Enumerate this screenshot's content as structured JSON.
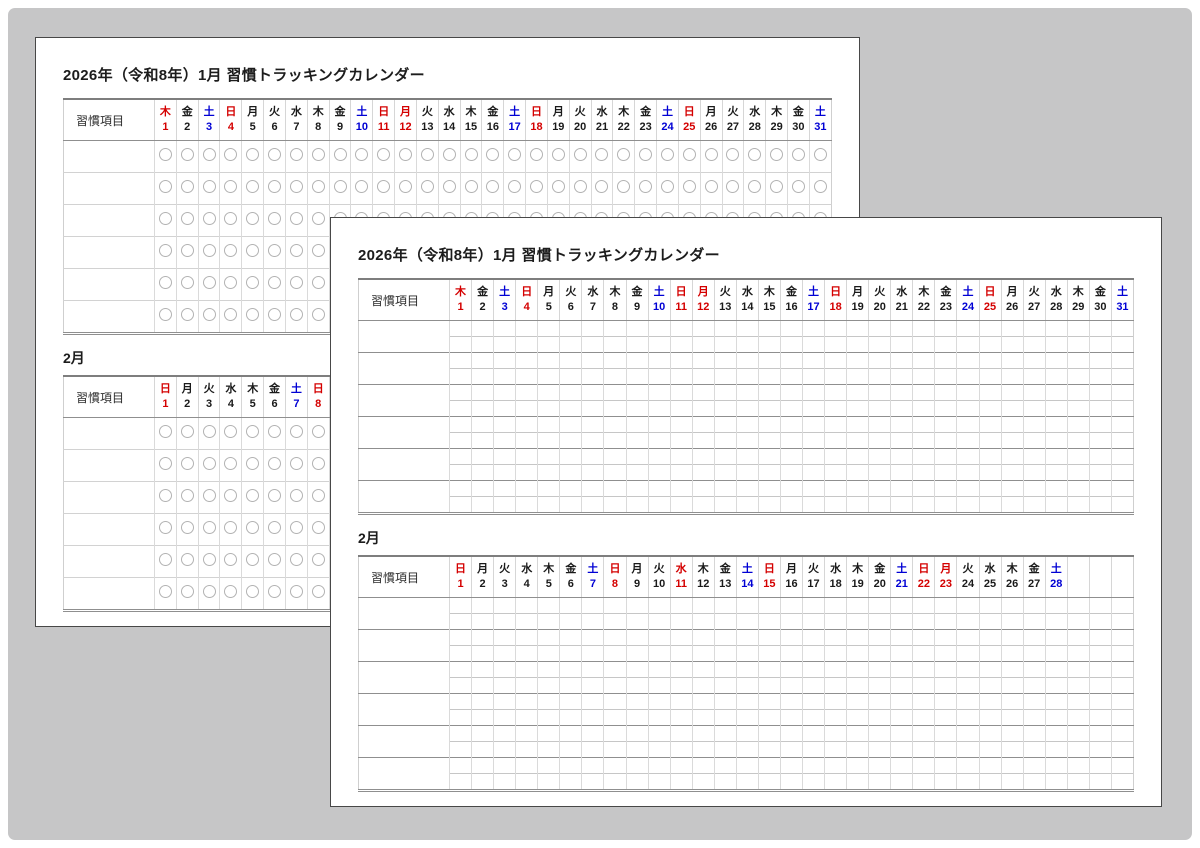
{
  "colors": {
    "sunday_holiday_red": "#d40000",
    "saturday_blue": "#0000d4",
    "weekday_black": "#1a1a1a",
    "background_gray": "#c6c6c7",
    "grid_light": "#d2d2d2",
    "grid_dark": "#8f8f8f"
  },
  "months": {
    "january": {
      "trailing_empty": 0,
      "days": [
        {
          "d": "1",
          "w": "木",
          "c": "red"
        },
        {
          "d": "2",
          "w": "金",
          "c": "black"
        },
        {
          "d": "3",
          "w": "土",
          "c": "blue"
        },
        {
          "d": "4",
          "w": "日",
          "c": "red"
        },
        {
          "d": "5",
          "w": "月",
          "c": "black"
        },
        {
          "d": "6",
          "w": "火",
          "c": "black"
        },
        {
          "d": "7",
          "w": "水",
          "c": "black"
        },
        {
          "d": "8",
          "w": "木",
          "c": "black"
        },
        {
          "d": "9",
          "w": "金",
          "c": "black"
        },
        {
          "d": "10",
          "w": "土",
          "c": "blue"
        },
        {
          "d": "11",
          "w": "日",
          "c": "red"
        },
        {
          "d": "12",
          "w": "月",
          "c": "red"
        },
        {
          "d": "13",
          "w": "火",
          "c": "black"
        },
        {
          "d": "14",
          "w": "水",
          "c": "black"
        },
        {
          "d": "15",
          "w": "木",
          "c": "black"
        },
        {
          "d": "16",
          "w": "金",
          "c": "black"
        },
        {
          "d": "17",
          "w": "土",
          "c": "blue"
        },
        {
          "d": "18",
          "w": "日",
          "c": "red"
        },
        {
          "d": "19",
          "w": "月",
          "c": "black"
        },
        {
          "d": "20",
          "w": "火",
          "c": "black"
        },
        {
          "d": "21",
          "w": "水",
          "c": "black"
        },
        {
          "d": "22",
          "w": "木",
          "c": "black"
        },
        {
          "d": "23",
          "w": "金",
          "c": "black"
        },
        {
          "d": "24",
          "w": "土",
          "c": "blue"
        },
        {
          "d": "25",
          "w": "日",
          "c": "red"
        },
        {
          "d": "26",
          "w": "月",
          "c": "black"
        },
        {
          "d": "27",
          "w": "火",
          "c": "black"
        },
        {
          "d": "28",
          "w": "水",
          "c": "black"
        },
        {
          "d": "29",
          "w": "木",
          "c": "black"
        },
        {
          "d": "30",
          "w": "金",
          "c": "black"
        },
        {
          "d": "31",
          "w": "土",
          "c": "blue"
        }
      ]
    },
    "february": {
      "trailing_empty": 3,
      "days": [
        {
          "d": "1",
          "w": "日",
          "c": "red"
        },
        {
          "d": "2",
          "w": "月",
          "c": "black"
        },
        {
          "d": "3",
          "w": "火",
          "c": "black"
        },
        {
          "d": "4",
          "w": "水",
          "c": "black"
        },
        {
          "d": "5",
          "w": "木",
          "c": "black"
        },
        {
          "d": "6",
          "w": "金",
          "c": "black"
        },
        {
          "d": "7",
          "w": "土",
          "c": "blue"
        },
        {
          "d": "8",
          "w": "日",
          "c": "red"
        },
        {
          "d": "9",
          "w": "月",
          "c": "black"
        },
        {
          "d": "10",
          "w": "火",
          "c": "black"
        },
        {
          "d": "11",
          "w": "水",
          "c": "red"
        },
        {
          "d": "12",
          "w": "木",
          "c": "black"
        },
        {
          "d": "13",
          "w": "金",
          "c": "black"
        },
        {
          "d": "14",
          "w": "土",
          "c": "blue"
        },
        {
          "d": "15",
          "w": "日",
          "c": "red"
        },
        {
          "d": "16",
          "w": "月",
          "c": "black"
        },
        {
          "d": "17",
          "w": "火",
          "c": "black"
        },
        {
          "d": "18",
          "w": "水",
          "c": "black"
        },
        {
          "d": "19",
          "w": "木",
          "c": "black"
        },
        {
          "d": "20",
          "w": "金",
          "c": "black"
        },
        {
          "d": "21",
          "w": "土",
          "c": "blue"
        },
        {
          "d": "22",
          "w": "日",
          "c": "red"
        },
        {
          "d": "23",
          "w": "月",
          "c": "red"
        },
        {
          "d": "24",
          "w": "火",
          "c": "black"
        },
        {
          "d": "25",
          "w": "水",
          "c": "black"
        },
        {
          "d": "26",
          "w": "木",
          "c": "black"
        },
        {
          "d": "27",
          "w": "金",
          "c": "black"
        },
        {
          "d": "28",
          "w": "土",
          "c": "blue"
        }
      ]
    }
  },
  "pages": [
    {
      "id": "back",
      "title": "2026年（令和8年）1月 習慣トラッキングカレンダー",
      "habit_column_label": "習慣項目",
      "body_style": "circles",
      "rows_per_table": 6,
      "sections": [
        {
          "heading": "",
          "month": "january"
        },
        {
          "heading": "2月",
          "month": "february"
        }
      ]
    },
    {
      "id": "front",
      "title": "2026年（令和8年）1月 習慣トラッキングカレンダー",
      "habit_column_label": "習慣項目",
      "body_style": "lines",
      "rows_per_table": 6,
      "sections": [
        {
          "heading": "",
          "month": "january"
        },
        {
          "heading": "2月",
          "month": "february"
        }
      ]
    }
  ]
}
